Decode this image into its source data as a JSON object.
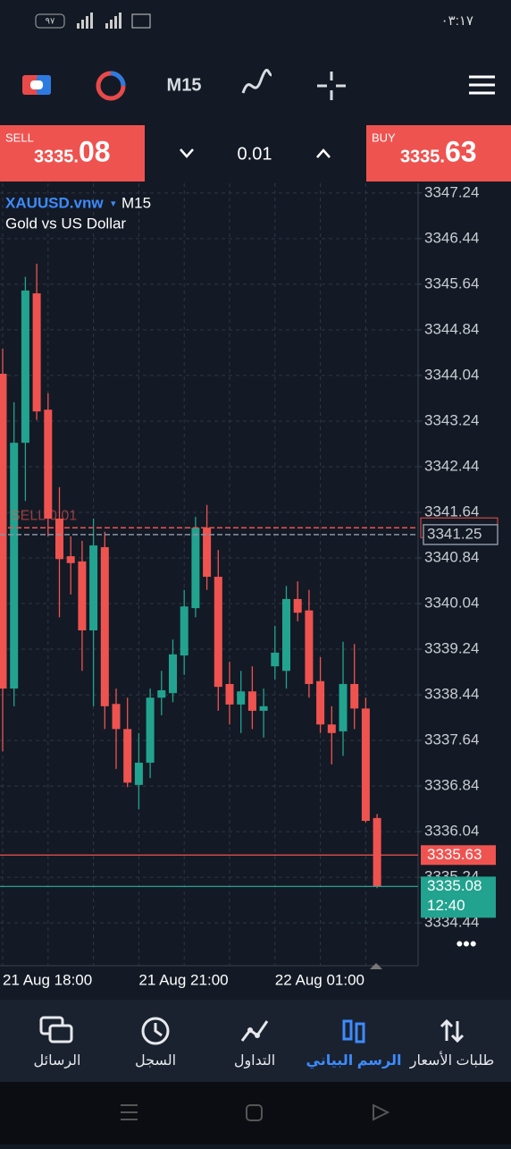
{
  "status_bar": {
    "time": "٠٣:١٧",
    "battery": "٩٧"
  },
  "toolbar": {
    "timeframe": "M15"
  },
  "trade_panel": {
    "sell_label": "SELL",
    "sell_price_main": "3335.",
    "sell_price_big": "08",
    "volume": "0.01",
    "buy_label": "BUY",
    "buy_price_main": "3335.",
    "buy_price_big": "63"
  },
  "chart_data": {
    "type": "candlestick",
    "title": "XAUUSD.vnw",
    "timeframe": "M15",
    "subtitle": "Gold vs US Dollar",
    "categories": [
      "21 Aug 18:00",
      null,
      null,
      null,
      null,
      null,
      null,
      null,
      null,
      null,
      null,
      null,
      "21 Aug 21:00",
      null,
      null,
      null,
      null,
      null,
      null,
      null,
      null,
      null,
      null,
      null,
      "22 Aug 01:00",
      null,
      null,
      null,
      null,
      null,
      null,
      null,
      null,
      null
    ],
    "open": [
      3344.07,
      3338.55,
      3342.86,
      3345.48,
      3343.44,
      3341.53,
      3340.87,
      3340.78,
      3339.57,
      3341.03,
      3338.28,
      3337.84,
      3336.86,
      3337.25,
      3338.39,
      3338.47,
      3339.13,
      3339.96,
      3341.37,
      3340.51,
      3338.63,
      3338.27,
      3338.5,
      3338.16,
      3338.94,
      3338.86,
      3340.12,
      3339.92,
      3338.68,
      3337.92,
      3337.8,
      3338.63,
      3338.2,
      3336.28
    ],
    "high": [
      3344.51,
      3343.57,
      3345.77,
      3346.0,
      3343.73,
      3342.08,
      3341.22,
      3341.14,
      3341.53,
      3341.3,
      3338.55,
      3338.39,
      3337.77,
      3338.55,
      3338.86,
      3339.41,
      3340.28,
      3341.56,
      3341.77,
      3340.98,
      3339.02,
      3338.86,
      3338.94,
      3338.55,
      3339.65,
      3340.35,
      3340.43,
      3340.28,
      3339.1,
      3338.24,
      3339.37,
      3339.33,
      3338.39,
      3336.35
    ],
    "low": [
      3337.45,
      3338.24,
      3341.84,
      3343.26,
      3341.22,
      3339.8,
      3340.2,
      3338.86,
      3338.24,
      3337.84,
      3337.14,
      3336.82,
      3336.43,
      3336.98,
      3338.08,
      3338.31,
      3338.79,
      3339.8,
      3340.28,
      3338.16,
      3337.92,
      3337.77,
      3337.84,
      3337.69,
      3338.71,
      3338.55,
      3339.73,
      3338.39,
      3337.77,
      3337.22,
      3337.37,
      3337.84,
      3336.2,
      3335.05
    ],
    "close": [
      3338.55,
      3342.86,
      3345.53,
      3343.41,
      3341.53,
      3340.82,
      3340.75,
      3339.57,
      3341.06,
      3338.24,
      3337.84,
      3336.9,
      3337.25,
      3338.39,
      3338.52,
      3339.15,
      3339.99,
      3341.37,
      3340.51,
      3338.58,
      3338.27,
      3338.5,
      3338.16,
      3338.24,
      3339.18,
      3340.12,
      3339.88,
      3338.63,
      3337.92,
      3337.77,
      3338.63,
      3338.2,
      3336.23,
      3335.08
    ],
    "up_color": "#22a38f",
    "down_color": "#ef5350",
    "ylim": [
      3333.69,
      3347.41
    ],
    "yticks": [
      3347.24,
      3346.44,
      3345.64,
      3344.84,
      3344.04,
      3343.24,
      3342.44,
      3341.64,
      3340.84,
      3340.04,
      3339.24,
      3338.44,
      3337.64,
      3336.84,
      3336.04,
      3335.24,
      3334.44
    ],
    "grid": true,
    "bid": 3335.08,
    "ask": 3335.63,
    "countdown": "12:40",
    "order": {
      "label": "SELL 0.01",
      "price": 3341.37
    },
    "position_price": 3341.25
  },
  "nav": {
    "items": [
      "الرسائل",
      "السجل",
      "التداول",
      "الرسم البياني",
      "طلبات الأسعار"
    ],
    "active": 3
  }
}
